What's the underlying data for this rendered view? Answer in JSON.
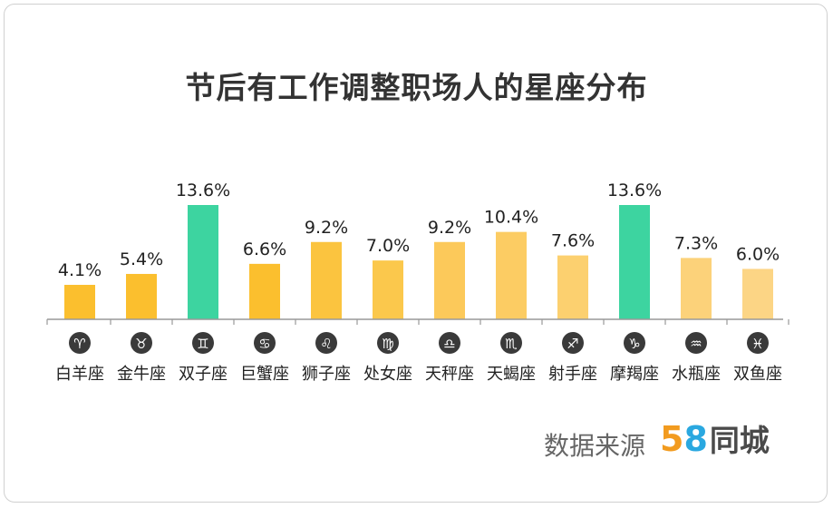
{
  "chart_data": {
    "type": "bar",
    "title": "节后有工作调整职场人的星座分布",
    "categories": [
      "白羊座",
      "金牛座",
      "双子座",
      "巨蟹座",
      "狮子座",
      "处女座",
      "天秤座",
      "天蝎座",
      "射手座",
      "摩羯座",
      "水瓶座",
      "双鱼座"
    ],
    "values": [
      4.1,
      5.4,
      13.6,
      6.6,
      9.2,
      7.0,
      9.2,
      10.4,
      7.6,
      13.6,
      7.3,
      6.0
    ],
    "value_labels": [
      "4.1%",
      "5.4%",
      "13.6%",
      "6.6%",
      "9.2%",
      "7.0%",
      "9.2%",
      "10.4%",
      "7.6%",
      "13.6%",
      "7.3%",
      "6.0%"
    ],
    "symbols": [
      "♈",
      "♉",
      "♊",
      "♋",
      "♌",
      "♍",
      "♎",
      "♏",
      "♐",
      "♑",
      "♒",
      "♓"
    ],
    "highlight": [
      false,
      false,
      true,
      false,
      false,
      false,
      false,
      false,
      false,
      true,
      false,
      false
    ],
    "colors": {
      "bar": [
        "#fbbf2e",
        "#fbbf2e",
        "#3dd4a0",
        "#fbbf2e",
        "#fbc43f",
        "#fbc84c",
        "#fcc95a",
        "#fccc63",
        "#fcd06f",
        "#3dd4a0",
        "#fcd27a",
        "#fcd585"
      ],
      "icon": "#3a3a3a",
      "axis": "#999999"
    },
    "ylim": [
      0,
      14
    ],
    "grid": false,
    "xlabel": "",
    "ylabel": ""
  },
  "source": {
    "label": "数据来源",
    "brand_digit_1": "5",
    "brand_digit_2": "8",
    "brand_name": "同城",
    "brand_colors": [
      "#f29b1f",
      "#2aa8e0"
    ]
  }
}
